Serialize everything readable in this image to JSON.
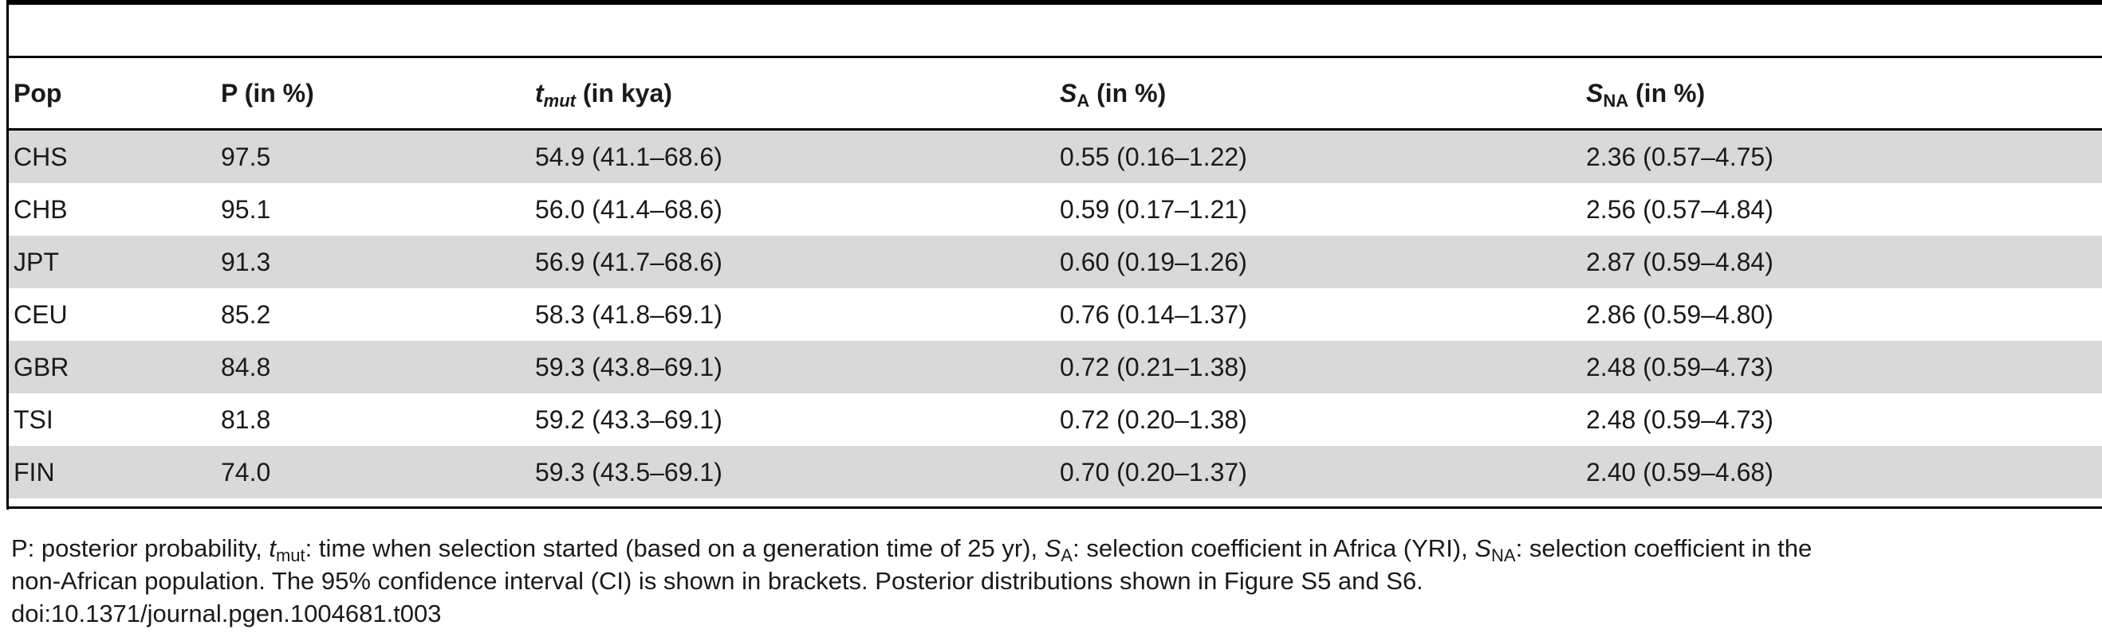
{
  "table": {
    "headers": {
      "pop": "Pop",
      "p": "P (in %)",
      "tmut_symbol": "t",
      "tmut_sub": "mut",
      "tmut_unit": " (in kya)",
      "sa_symbol": "S",
      "sa_sub": "A",
      "sa_unit": " (in %)",
      "sna_symbol": "S",
      "sna_sub": "NA",
      "sna_unit": " (in %)"
    },
    "rows": [
      {
        "pop": "CHS",
        "p": "97.5",
        "tmut": "54.9 (41.1–68.6)",
        "sa": "0.55 (0.16–1.22)",
        "sna": "2.36 (0.57–4.75)"
      },
      {
        "pop": "CHB",
        "p": "95.1",
        "tmut": "56.0 (41.4–68.6)",
        "sa": "0.59 (0.17–1.21)",
        "sna": "2.56 (0.57–4.84)"
      },
      {
        "pop": "JPT",
        "p": "91.3",
        "tmut": "56.9 (41.7–68.6)",
        "sa": "0.60 (0.19–1.26)",
        "sna": "2.87 (0.59–4.84)"
      },
      {
        "pop": "CEU",
        "p": "85.2",
        "tmut": "58.3 (41.8–69.1)",
        "sa": "0.76 (0.14–1.37)",
        "sna": "2.86 (0.59–4.80)"
      },
      {
        "pop": "GBR",
        "p": "84.8",
        "tmut": "59.3 (43.8–69.1)",
        "sa": "0.72 (0.21–1.38)",
        "sna": "2.48 (0.59–4.73)"
      },
      {
        "pop": "TSI",
        "p": "81.8",
        "tmut": "59.2 (43.3–69.1)",
        "sa": "0.72 (0.20–1.38)",
        "sna": "2.48 (0.59–4.73)"
      },
      {
        "pop": "FIN",
        "p": "74.0",
        "tmut": "59.3 (43.5–69.1)",
        "sa": "0.70 (0.20–1.37)",
        "sna": "2.40 (0.59–4.68)"
      }
    ]
  },
  "footnote": {
    "line1_a": "P: posterior probability, ",
    "line1_t": "t",
    "line1_tsub": "mut",
    "line1_b": ": time when selection started (based on a generation time of 25 yr), ",
    "line1_s1": "S",
    "line1_s1sub": "A",
    "line1_c": ": selection coefficient in Africa (YRI), ",
    "line1_s2": "S",
    "line1_s2sub": "NA",
    "line1_d": ": selection coefficient in the",
    "line2": "non-African population. The 95% confidence interval (CI) is shown in brackets. Posterior distributions shown in Figure S5 and S6.",
    "doi": "doi:10.1371/journal.pgen.1004681.t003"
  }
}
